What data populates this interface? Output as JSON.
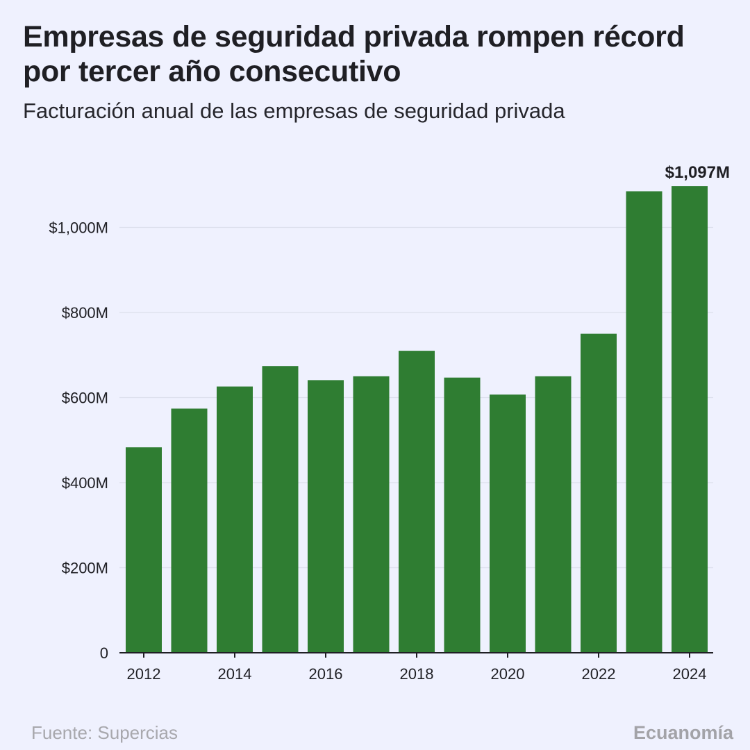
{
  "header": {
    "title": "Empresas de seguridad privada rompen récord por tercer año consecutivo",
    "subtitle": "Facturación anual de las empresas de seguridad privada"
  },
  "footer": {
    "source": "Fuente: Supercias",
    "brand": "Ecuanomía"
  },
  "colors": {
    "bar": "#2f7d32",
    "background": "#eff1fe",
    "grid": "#dcdfec",
    "axis": "#1f1f24"
  },
  "chart_data": {
    "type": "bar",
    "title": "Empresas de seguridad privada rompen récord por tercer año consecutivo",
    "subtitle": "Facturación anual de las empresas de seguridad privada",
    "xlabel": "",
    "ylabel": "",
    "categories": [
      2012,
      2013,
      2014,
      2015,
      2016,
      2017,
      2018,
      2019,
      2020,
      2021,
      2022,
      2023,
      2024
    ],
    "values": [
      483,
      574,
      626,
      674,
      641,
      650,
      710,
      647,
      607,
      650,
      750,
      1085,
      1097
    ],
    "unit": "M USD",
    "ylim": [
      0,
      1150
    ],
    "y_ticks": [
      0,
      200,
      400,
      600,
      800,
      1000
    ],
    "y_tick_labels": [
      "0",
      "$200M",
      "$400M",
      "$600M",
      "$800M",
      "$1,000M"
    ],
    "x_tick_labels": [
      "2012",
      "2014",
      "2016",
      "2018",
      "2020",
      "2022",
      "2024"
    ],
    "grid": true,
    "legend": "none",
    "annotations": [
      {
        "category": 2024,
        "text": "$1,097M"
      }
    ]
  }
}
